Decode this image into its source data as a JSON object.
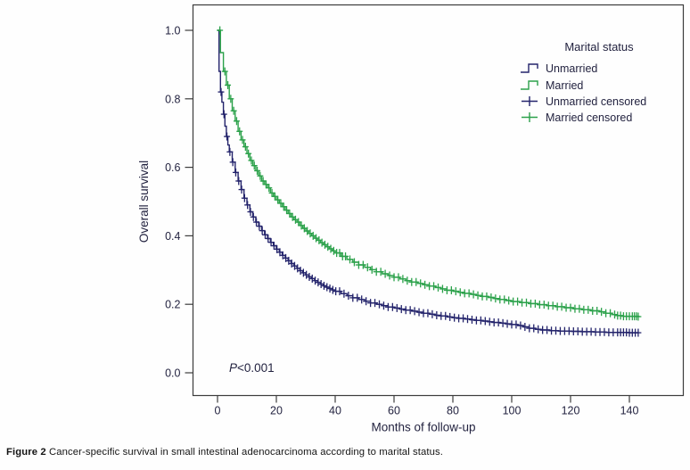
{
  "figure": {
    "caption_label": "Figure 2",
    "caption_text": " Cancer-specific survival in small intestinal adenocarcinoma according to marital status."
  },
  "chart_data": {
    "type": "line",
    "subtype": "kaplan-meier-step",
    "xlabel": "Months of follow-up",
    "ylabel": "Overall survival",
    "xlim": [
      -8,
      158
    ],
    "ylim": [
      -0.07,
      1.07
    ],
    "x_ticks": [
      0,
      20,
      40,
      60,
      80,
      100,
      120,
      140
    ],
    "y_ticks": [
      "0.0",
      "0.2",
      "0.4",
      "0.6",
      "0.8",
      "1.0"
    ],
    "grid": false,
    "annotation": {
      "italic": "P",
      "rest": "<0.001"
    },
    "legend": {
      "title": "Marital status",
      "position": "top-right",
      "entries": [
        {
          "label": "Unmarried",
          "symbol": "step",
          "color": "#23236b"
        },
        {
          "label": "Married",
          "symbol": "step",
          "color": "#2ba14a"
        },
        {
          "label": "Unmarried censored",
          "symbol": "plus",
          "color": "#23236b"
        },
        {
          "label": "Married censored",
          "symbol": "plus",
          "color": "#2ba14a"
        }
      ]
    },
    "colors": {
      "unmarried": "#23236b",
      "married": "#2ba14a",
      "axis": "#3c3c3c",
      "text": "#232340"
    },
    "series": [
      {
        "name": "Unmarried",
        "color": "#23236b",
        "steps": [
          [
            0,
            1.0
          ],
          [
            0.5,
            0.88
          ],
          [
            1,
            0.82
          ],
          [
            1.5,
            0.79
          ],
          [
            2,
            0.755
          ],
          [
            2.5,
            0.72
          ],
          [
            3,
            0.69
          ],
          [
            3.5,
            0.665
          ],
          [
            4,
            0.645
          ],
          [
            5,
            0.615
          ],
          [
            6,
            0.585
          ],
          [
            7,
            0.56
          ],
          [
            8,
            0.535
          ],
          [
            9,
            0.51
          ],
          [
            10,
            0.49
          ],
          [
            11,
            0.47
          ],
          [
            12,
            0.455
          ],
          [
            13,
            0.44
          ],
          [
            14,
            0.428
          ],
          [
            15,
            0.415
          ],
          [
            16,
            0.403
          ],
          [
            17,
            0.392
          ],
          [
            18,
            0.381
          ],
          [
            19,
            0.371
          ],
          [
            20,
            0.361
          ],
          [
            21,
            0.352
          ],
          [
            22,
            0.343
          ],
          [
            23,
            0.335
          ],
          [
            24,
            0.327
          ],
          [
            25,
            0.319
          ],
          [
            26,
            0.312
          ],
          [
            27,
            0.305
          ],
          [
            28,
            0.298
          ],
          [
            29,
            0.292
          ],
          [
            30,
            0.286
          ],
          [
            31,
            0.28
          ],
          [
            32,
            0.275
          ],
          [
            33,
            0.269
          ],
          [
            34,
            0.264
          ],
          [
            35,
            0.259
          ],
          [
            36,
            0.254
          ],
          [
            37,
            0.25
          ],
          [
            38,
            0.246
          ],
          [
            39,
            0.242
          ],
          [
            40,
            0.238
          ],
          [
            42,
            0.231
          ],
          [
            44,
            0.225
          ],
          [
            46,
            0.219
          ],
          [
            48,
            0.214
          ],
          [
            50,
            0.209
          ],
          [
            52,
            0.204
          ],
          [
            54,
            0.2
          ],
          [
            56,
            0.196
          ],
          [
            58,
            0.192
          ],
          [
            60,
            0.189
          ],
          [
            62,
            0.186
          ],
          [
            64,
            0.183
          ],
          [
            66,
            0.18
          ],
          [
            68,
            0.177
          ],
          [
            70,
            0.174
          ],
          [
            72,
            0.171
          ],
          [
            74,
            0.168
          ],
          [
            76,
            0.166
          ],
          [
            78,
            0.163
          ],
          [
            80,
            0.161
          ],
          [
            82,
            0.159
          ],
          [
            84,
            0.157
          ],
          [
            86,
            0.155
          ],
          [
            88,
            0.153
          ],
          [
            90,
            0.151
          ],
          [
            92,
            0.149
          ],
          [
            94,
            0.147
          ],
          [
            96,
            0.145
          ],
          [
            98,
            0.143
          ],
          [
            100,
            0.141
          ],
          [
            102,
            0.138
          ],
          [
            104,
            0.134
          ],
          [
            106,
            0.13
          ],
          [
            108,
            0.127
          ],
          [
            110,
            0.125
          ],
          [
            113,
            0.123
          ],
          [
            116,
            0.122
          ],
          [
            120,
            0.121
          ],
          [
            124,
            0.12
          ],
          [
            128,
            0.119
          ],
          [
            132,
            0.118
          ],
          [
            136,
            0.118
          ],
          [
            140,
            0.117
          ],
          [
            143,
            0.117
          ]
        ],
        "censor_times": [
          1.2,
          2.2,
          3.2,
          4.2,
          5.2,
          6.2,
          7.2,
          8.2,
          9.2,
          10.2,
          11.2,
          12.2,
          13.2,
          14.2,
          15.2,
          16.2,
          17.2,
          18.2,
          19.2,
          20.2,
          21.2,
          22.2,
          23.2,
          24.2,
          25.2,
          26.2,
          27.2,
          28.2,
          29.2,
          30.2,
          31.2,
          32.2,
          33.2,
          34.2,
          35.2,
          36.2,
          37.2,
          38.2,
          39.2,
          40.2,
          41.5,
          43,
          44.5,
          46,
          47.5,
          49,
          50.5,
          52,
          53.5,
          55,
          56.5,
          58,
          59.5,
          61,
          62.5,
          64,
          65.5,
          67,
          68.5,
          70,
          71.5,
          73,
          74.5,
          76,
          77.5,
          79,
          80.5,
          82,
          83.5,
          85,
          86.5,
          88,
          89.5,
          91,
          92.5,
          94,
          95.5,
          97,
          98.5,
          100,
          101.5,
          103,
          104.5,
          106,
          107.5,
          109,
          110.5,
          112,
          113.5,
          115,
          116.5,
          118,
          119.5,
          121,
          122.5,
          124,
          125.5,
          127,
          128.5,
          130,
          131.5,
          133,
          134.5,
          136,
          137,
          138,
          139,
          140,
          141,
          142,
          143
        ]
      },
      {
        "name": "Married",
        "color": "#2ba14a",
        "steps": [
          [
            0,
            1.0
          ],
          [
            1,
            0.935
          ],
          [
            2,
            0.88
          ],
          [
            3,
            0.84
          ],
          [
            4,
            0.8
          ],
          [
            5,
            0.765
          ],
          [
            6,
            0.735
          ],
          [
            7,
            0.705
          ],
          [
            8,
            0.68
          ],
          [
            9,
            0.66
          ],
          [
            10,
            0.64
          ],
          [
            11,
            0.62
          ],
          [
            12,
            0.605
          ],
          [
            13,
            0.59
          ],
          [
            14,
            0.575
          ],
          [
            15,
            0.56
          ],
          [
            16,
            0.55
          ],
          [
            17,
            0.54
          ],
          [
            18,
            0.525
          ],
          [
            19,
            0.515
          ],
          [
            20,
            0.505
          ],
          [
            21,
            0.495
          ],
          [
            22,
            0.485
          ],
          [
            23,
            0.475
          ],
          [
            24,
            0.465
          ],
          [
            25,
            0.455
          ],
          [
            26,
            0.447
          ],
          [
            27,
            0.44
          ],
          [
            28,
            0.43
          ],
          [
            29,
            0.422
          ],
          [
            30,
            0.414
          ],
          [
            31,
            0.407
          ],
          [
            32,
            0.4
          ],
          [
            33,
            0.393
          ],
          [
            34,
            0.387
          ],
          [
            35,
            0.38
          ],
          [
            36,
            0.374
          ],
          [
            37,
            0.368
          ],
          [
            38,
            0.362
          ],
          [
            39,
            0.356
          ],
          [
            40,
            0.35
          ],
          [
            42,
            0.34
          ],
          [
            44,
            0.331
          ],
          [
            46,
            0.323
          ],
          [
            48,
            0.315
          ],
          [
            50,
            0.308
          ],
          [
            52,
            0.301
          ],
          [
            54,
            0.295
          ],
          [
            56,
            0.289
          ],
          [
            58,
            0.284
          ],
          [
            60,
            0.279
          ],
          [
            62,
            0.274
          ],
          [
            64,
            0.269
          ],
          [
            66,
            0.265
          ],
          [
            68,
            0.261
          ],
          [
            70,
            0.257
          ],
          [
            72,
            0.253
          ],
          [
            74,
            0.249
          ],
          [
            76,
            0.245
          ],
          [
            78,
            0.241
          ],
          [
            80,
            0.238
          ],
          [
            82,
            0.235
          ],
          [
            84,
            0.232
          ],
          [
            86,
            0.229
          ],
          [
            88,
            0.226
          ],
          [
            90,
            0.223
          ],
          [
            92,
            0.22
          ],
          [
            94,
            0.217
          ],
          [
            96,
            0.214
          ],
          [
            98,
            0.211
          ],
          [
            100,
            0.208
          ],
          [
            103,
            0.205
          ],
          [
            106,
            0.202
          ],
          [
            109,
            0.199
          ],
          [
            112,
            0.196
          ],
          [
            115,
            0.193
          ],
          [
            118,
            0.19
          ],
          [
            121,
            0.187
          ],
          [
            124,
            0.184
          ],
          [
            127,
            0.181
          ],
          [
            130,
            0.178
          ],
          [
            132,
            0.174
          ],
          [
            134,
            0.17
          ],
          [
            136,
            0.167
          ],
          [
            138,
            0.165
          ],
          [
            143,
            0.164
          ]
        ],
        "censor_times": [
          0.8,
          2.5,
          3.5,
          4.5,
          5.5,
          6.5,
          7.5,
          8.5,
          9.5,
          10.5,
          11.5,
          12.5,
          13.5,
          14.5,
          15.5,
          16.5,
          17.5,
          18.5,
          19.5,
          20.5,
          21.5,
          22.5,
          23.5,
          24.5,
          25.5,
          26.5,
          27.5,
          28.5,
          29.5,
          30.5,
          31.5,
          32.5,
          33.5,
          34.5,
          35.5,
          36.5,
          37.5,
          38.5,
          39.5,
          40.5,
          41.5,
          42.5,
          43.5,
          45,
          46.5,
          48,
          49.5,
          51,
          52.5,
          54,
          55.5,
          57,
          58.5,
          60,
          61.5,
          63,
          64.5,
          66,
          67.5,
          69,
          70.5,
          72,
          73.5,
          75,
          76.5,
          78,
          79.5,
          81,
          82.5,
          84,
          85.5,
          87,
          88.5,
          90,
          91.5,
          93,
          94.5,
          96,
          97.5,
          99,
          100.5,
          102,
          103.5,
          105,
          106.5,
          108,
          109.5,
          111,
          112.5,
          114,
          115.5,
          117,
          118.5,
          120,
          121.5,
          123,
          124.5,
          126,
          127.5,
          129,
          130.5,
          132,
          133.5,
          135,
          136,
          137,
          138,
          139,
          140,
          141,
          141.7,
          142.4,
          143
        ]
      }
    ]
  }
}
